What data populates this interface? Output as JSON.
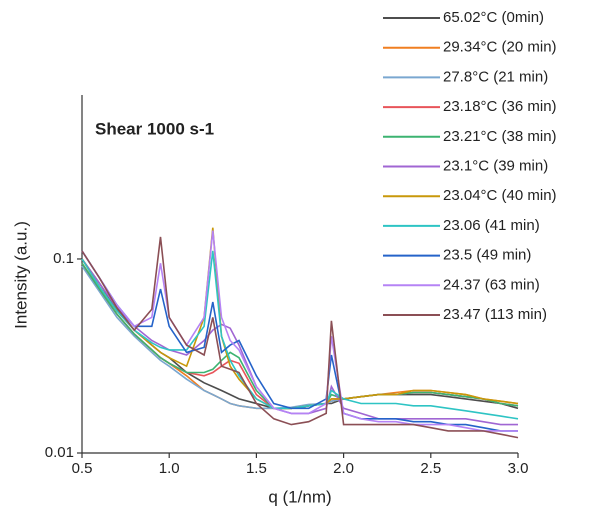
{
  "chart_data": {
    "type": "line",
    "annotation": "Shear 1000 s-1",
    "x_label": "q (1/nm)",
    "y_label": "Intensity (a.u.)",
    "log_y": true,
    "grid": false,
    "legend": "upper right",
    "xlim": [
      0.5,
      3.0
    ],
    "xticks": [
      0.5,
      {
        "value": 1,
        "label": "1.0"
      },
      1.5,
      {
        "value": 2,
        "label": "2.0"
      },
      2.5,
      {
        "value": 3,
        "label": "3.0"
      }
    ],
    "ylim": [
      0.01,
      0.7
    ],
    "yticks": [
      0.01,
      0.1
    ],
    "x": [
      0.5,
      0.6,
      0.7,
      0.8,
      0.9,
      0.95,
      1.0,
      1.1,
      1.2,
      1.25,
      1.3,
      1.35,
      1.4,
      1.5,
      1.6,
      1.7,
      1.8,
      1.9,
      1.93,
      2.0,
      2.1,
      2.2,
      2.3,
      2.4,
      2.5,
      2.6,
      2.7,
      2.8,
      2.9,
      3.0
    ],
    "series": [
      {
        "name": "65.02°C (0min)",
        "color": "#4d4d4d",
        "values": [
          0.1,
          0.075,
          0.055,
          0.043,
          0.036,
          0.033,
          0.031,
          0.026,
          0.023,
          0.022,
          0.021,
          0.02,
          0.019,
          0.018,
          0.017,
          0.017,
          0.0175,
          0.018,
          0.018,
          0.019,
          0.0195,
          0.02,
          0.02,
          0.02,
          0.02,
          0.0195,
          0.019,
          0.0185,
          0.018,
          0.017
        ]
      },
      {
        "name": "29.34°C (20 min)",
        "color": "#f07f20",
        "values": [
          0.095,
          0.07,
          0.052,
          0.041,
          0.034,
          0.031,
          0.029,
          0.025,
          0.021,
          0.02,
          0.019,
          0.018,
          0.0175,
          0.017,
          0.017,
          0.017,
          0.0175,
          0.018,
          0.0185,
          0.019,
          0.0195,
          0.02,
          0.0205,
          0.021,
          0.021,
          0.0205,
          0.02,
          0.019,
          0.0185,
          0.018
        ]
      },
      {
        "name": "27.8°C (21 min)",
        "color": "#7aa7d0",
        "values": [
          0.092,
          0.068,
          0.05,
          0.04,
          0.033,
          0.03,
          0.028,
          0.024,
          0.021,
          0.02,
          0.019,
          0.018,
          0.0175,
          0.017,
          0.017,
          0.0172,
          0.0178,
          0.018,
          0.0185,
          0.019,
          0.0195,
          0.02,
          0.02,
          0.0205,
          0.0205,
          0.02,
          0.0195,
          0.019,
          0.018,
          0.0175
        ]
      },
      {
        "name": "23.18°C (36 min)",
        "color": "#e8545a",
        "values": [
          0.095,
          0.07,
          0.052,
          0.041,
          0.034,
          0.031,
          0.029,
          0.026,
          0.025,
          0.026,
          0.028,
          0.03,
          0.029,
          0.02,
          0.017,
          0.017,
          0.0175,
          0.018,
          0.019,
          0.019,
          0.0195,
          0.02,
          0.02,
          0.0205,
          0.0205,
          0.02,
          0.0195,
          0.019,
          0.018,
          0.0175
        ]
      },
      {
        "name": "23.21°C (38 min)",
        "color": "#3cb371",
        "values": [
          0.095,
          0.07,
          0.052,
          0.041,
          0.034,
          0.031,
          0.029,
          0.026,
          0.026,
          0.027,
          0.03,
          0.033,
          0.031,
          0.021,
          0.017,
          0.017,
          0.0175,
          0.018,
          0.02,
          0.019,
          0.0195,
          0.02,
          0.02,
          0.0205,
          0.0205,
          0.02,
          0.0195,
          0.019,
          0.018,
          0.0175
        ]
      },
      {
        "name": "23.1°C (39 min)",
        "color": "#a066d3",
        "values": [
          0.1,
          0.075,
          0.056,
          0.045,
          0.038,
          0.036,
          0.034,
          0.032,
          0.038,
          0.043,
          0.046,
          0.044,
          0.036,
          0.022,
          0.017,
          0.016,
          0.016,
          0.017,
          0.022,
          0.017,
          0.016,
          0.015,
          0.015,
          0.015,
          0.015,
          0.015,
          0.015,
          0.0145,
          0.014,
          0.014
        ]
      },
      {
        "name": "23.04°C (40 min)",
        "color": "#c8980a",
        "values": [
          0.1,
          0.072,
          0.054,
          0.043,
          0.036,
          0.033,
          0.031,
          0.028,
          0.05,
          0.145,
          0.04,
          0.028,
          0.024,
          0.019,
          0.017,
          0.017,
          0.0175,
          0.018,
          0.019,
          0.019,
          0.0195,
          0.02,
          0.02,
          0.021,
          0.021,
          0.0205,
          0.02,
          0.019,
          0.0185,
          0.018
        ]
      },
      {
        "name": "23.06 (41 min)",
        "color": "#2ec4c4",
        "values": [
          0.1,
          0.072,
          0.054,
          0.043,
          0.037,
          0.035,
          0.034,
          0.034,
          0.045,
          0.11,
          0.04,
          0.03,
          0.025,
          0.019,
          0.017,
          0.017,
          0.0175,
          0.018,
          0.021,
          0.019,
          0.018,
          0.018,
          0.018,
          0.0175,
          0.0175,
          0.017,
          0.0165,
          0.016,
          0.0155,
          0.015
        ]
      },
      {
        "name": "23.5 (49 min)",
        "color": "#2563c9",
        "values": [
          0.11,
          0.08,
          0.058,
          0.045,
          0.045,
          0.07,
          0.045,
          0.033,
          0.035,
          0.06,
          0.033,
          0.036,
          0.038,
          0.025,
          0.018,
          0.017,
          0.017,
          0.019,
          0.032,
          0.016,
          0.015,
          0.015,
          0.015,
          0.0145,
          0.0145,
          0.014,
          0.014,
          0.0135,
          0.013,
          0.013
        ]
      },
      {
        "name": "24.37 (63 min)",
        "color": "#b583f5",
        "values": [
          0.11,
          0.08,
          0.058,
          0.045,
          0.05,
          0.095,
          0.05,
          0.036,
          0.05,
          0.14,
          0.05,
          0.038,
          0.034,
          0.022,
          0.017,
          0.016,
          0.016,
          0.018,
          0.04,
          0.016,
          0.015,
          0.0145,
          0.0145,
          0.014,
          0.014,
          0.014,
          0.0135,
          0.013,
          0.013,
          0.013
        ]
      },
      {
        "name": "23.47 (113 min)",
        "color": "#8b4f55",
        "values": [
          0.11,
          0.08,
          0.056,
          0.043,
          0.055,
          0.13,
          0.05,
          0.036,
          0.032,
          0.05,
          0.028,
          0.027,
          0.026,
          0.018,
          0.015,
          0.014,
          0.0145,
          0.016,
          0.048,
          0.014,
          0.014,
          0.014,
          0.014,
          0.014,
          0.0135,
          0.013,
          0.013,
          0.013,
          0.0125,
          0.012
        ]
      }
    ]
  }
}
